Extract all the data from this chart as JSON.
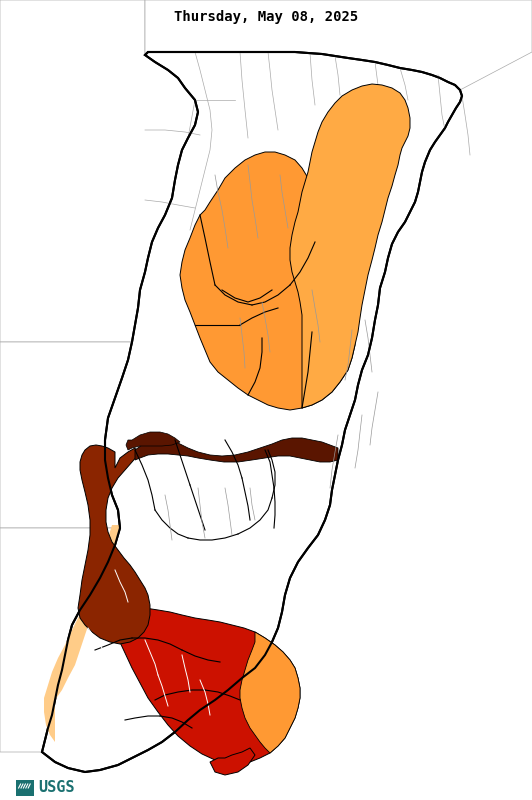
{
  "title": "Thursday, May 08, 2025",
  "title_fontsize": 10,
  "title_font": "monospace",
  "background_color": "#ffffff",
  "usgs_color": "#1a7070",
  "colors": {
    "white": "#ffffff",
    "light_orange": "#ffcc88",
    "orange": "#ff9933",
    "dark_orange": "#e07820",
    "brown": "#8b2500",
    "dark_brown": "#5a1500",
    "red": "#cc1100",
    "border_black": "#000000",
    "border_gray": "#aaaaaa",
    "stream_gray": "#999999",
    "stream_white": "#ffffff"
  },
  "figsize": [
    5.32,
    8.0
  ],
  "dpi": 100
}
